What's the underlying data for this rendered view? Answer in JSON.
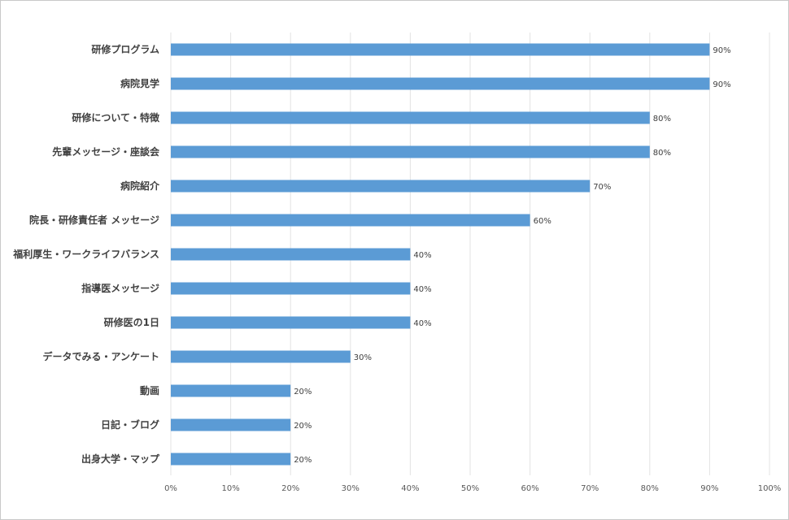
{
  "chart_data": {
    "type": "bar",
    "orientation": "horizontal",
    "categories": [
      "研修プログラム",
      "病院見学",
      "研修について・特徴",
      "先輩メッセージ・座談会",
      "病院紹介",
      "院長・研修責任者 メッセージ",
      "福利厚生・ワークライフバランス",
      "指導医メッセージ",
      "研修医の1日",
      "データでみる・アンケート",
      "動画",
      "日記・ブログ",
      "出身大学・マップ"
    ],
    "values": [
      90,
      90,
      80,
      80,
      70,
      60,
      40,
      40,
      40,
      30,
      20,
      20,
      20
    ],
    "data_labels": [
      "90%",
      "90%",
      "80%",
      "80%",
      "70%",
      "60%",
      "40%",
      "40%",
      "40%",
      "30%",
      "20%",
      "20%",
      "20%"
    ],
    "x_ticks": [
      "0%",
      "10%",
      "20%",
      "30%",
      "40%",
      "50%",
      "60%",
      "70%",
      "80%",
      "90%",
      "100%"
    ],
    "xlim": [
      0,
      100
    ],
    "grid": true,
    "legend": "none",
    "bar_color": "#5b9bd5",
    "grid_color": "#e3e3e3",
    "title": "",
    "xlabel": "",
    "ylabel": ""
  }
}
